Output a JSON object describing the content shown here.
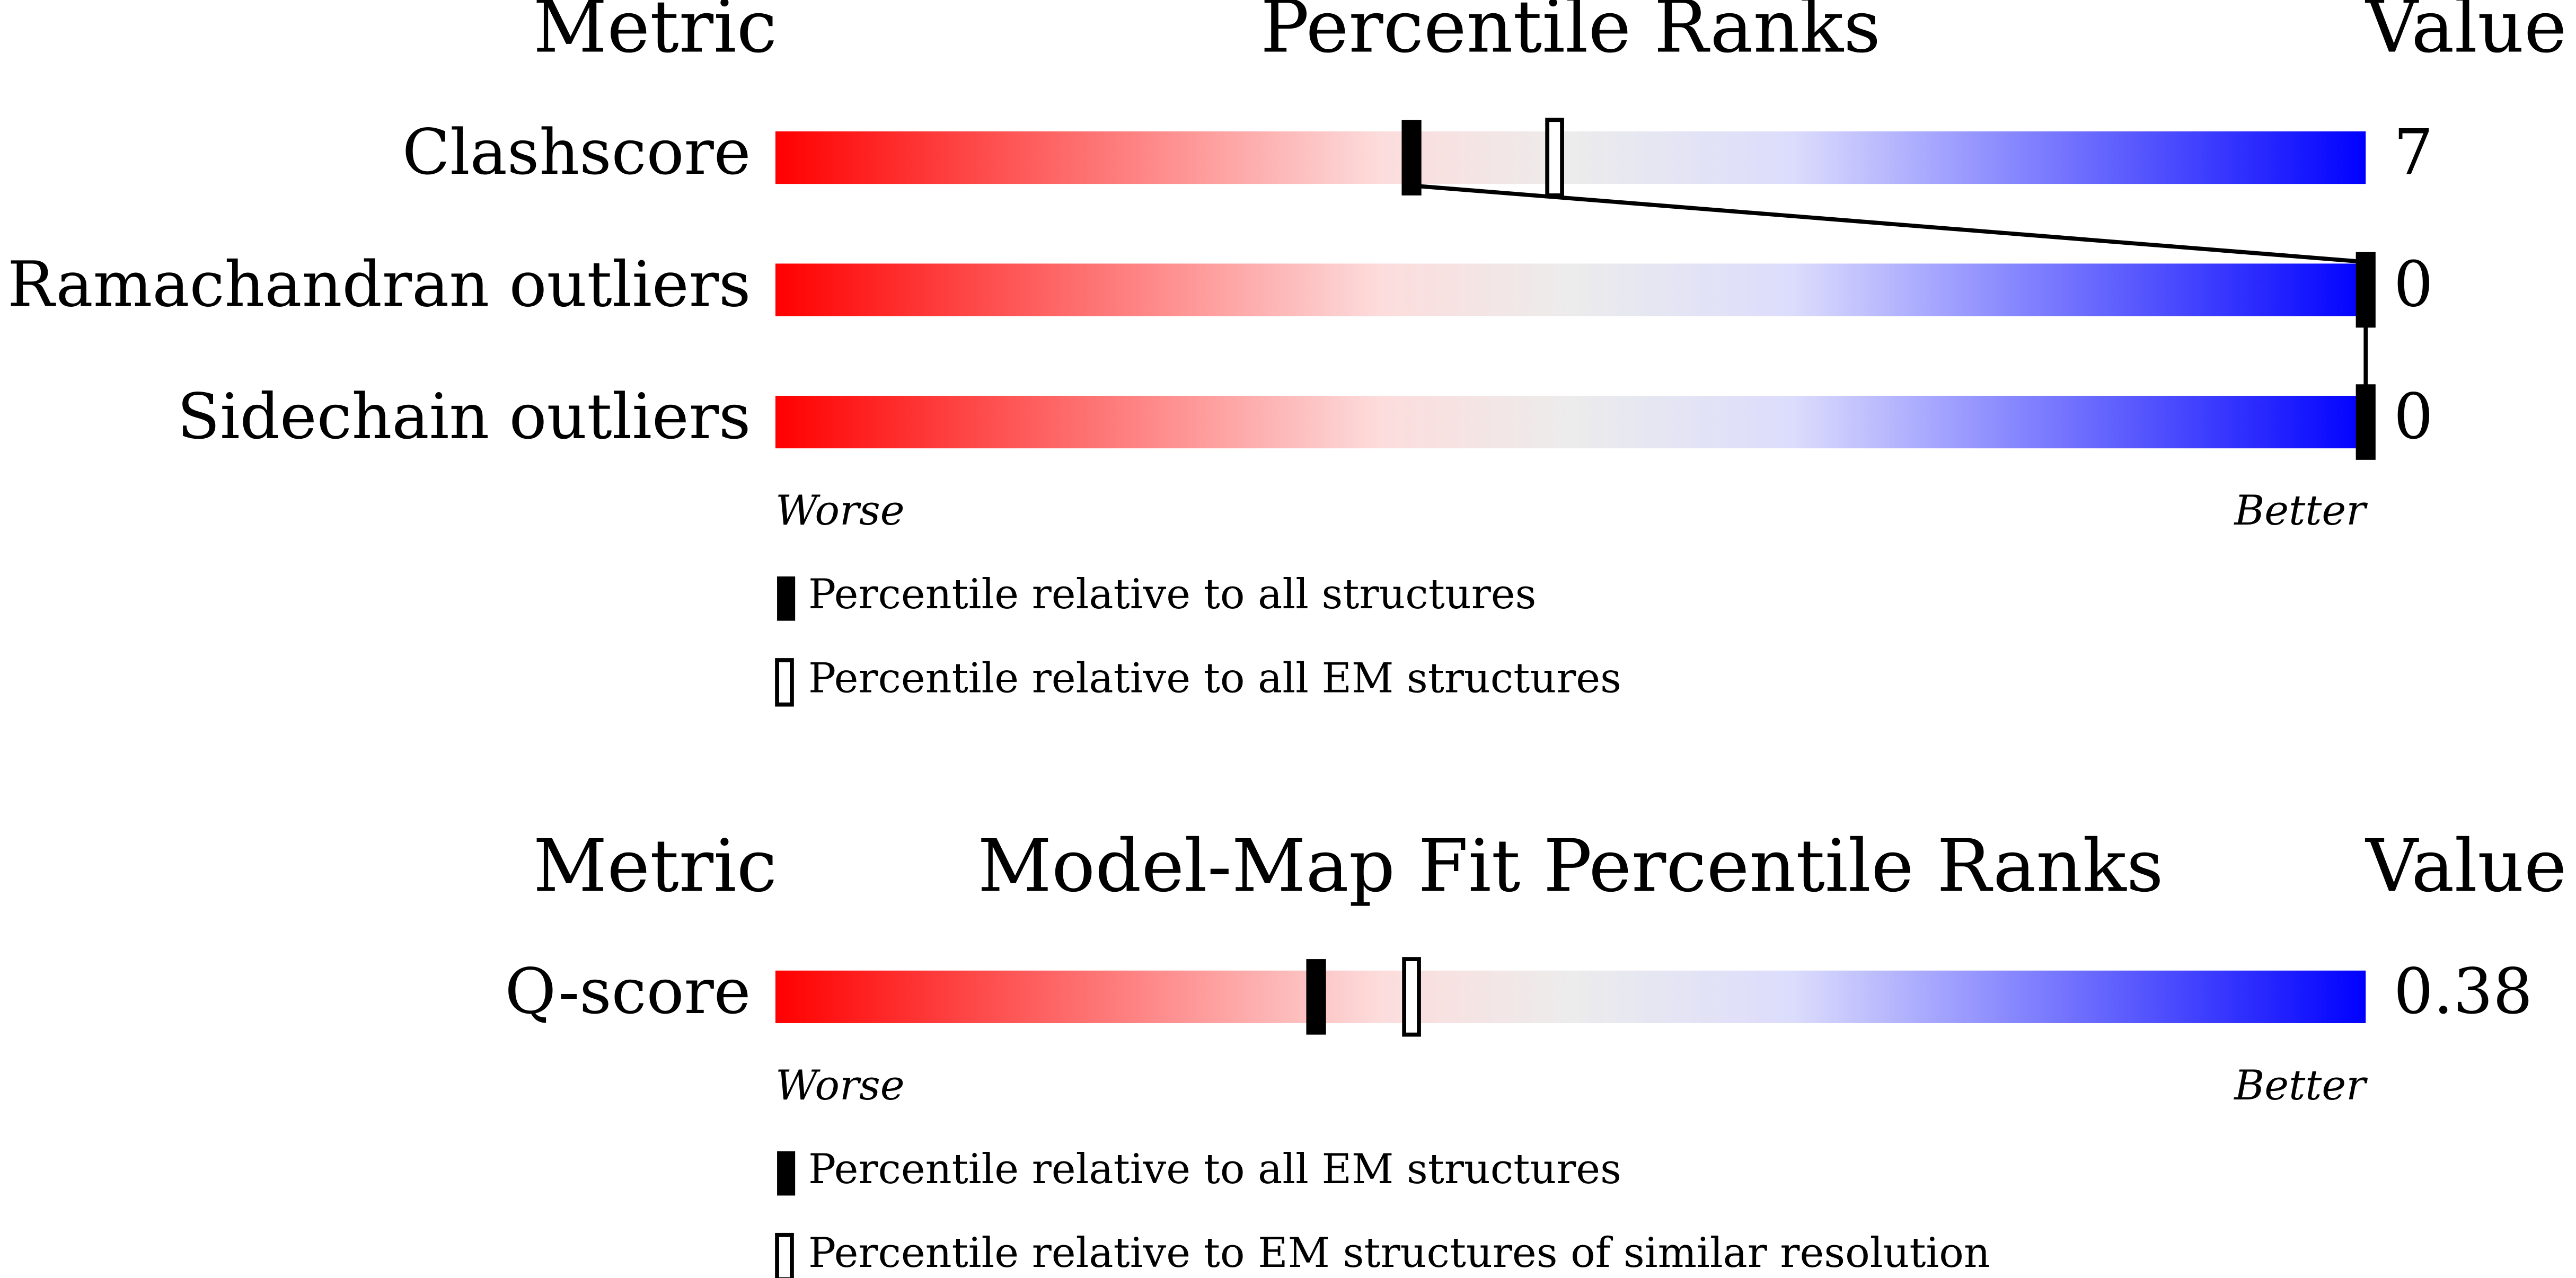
{
  "chart_data": [
    {
      "type": "percentile",
      "title": "Percentile Ranks",
      "metric_header": "Metric",
      "value_header": "Value",
      "categories": [
        "Clashscore",
        "Ramachandran outliers",
        "Sidechain outliers"
      ],
      "values": [
        7,
        0,
        0
      ],
      "series": [
        {
          "name": "Percentile relative to all structures",
          "style": "filled",
          "values": [
            40,
            100,
            100
          ]
        },
        {
          "name": "Percentile relative to all EM structures",
          "style": "open",
          "values": [
            49,
            null,
            null
          ]
        }
      ],
      "xlim": [
        0,
        100
      ],
      "axis_labels": [
        "Worse",
        "Better"
      ]
    },
    {
      "type": "percentile",
      "title": "Model-Map Fit Percentile Ranks",
      "metric_header": "Metric",
      "value_header": "Value",
      "categories": [
        "Q-score"
      ],
      "values": [
        0.38
      ],
      "series": [
        {
          "name": "Percentile relative to all EM structures",
          "style": "filled",
          "values": [
            34
          ]
        },
        {
          "name": "Percentile relative to EM structures of similar resolution",
          "style": "open",
          "values": [
            40
          ]
        }
      ],
      "xlim": [
        0,
        100
      ],
      "axis_labels": [
        "Worse",
        "Better"
      ]
    }
  ]
}
